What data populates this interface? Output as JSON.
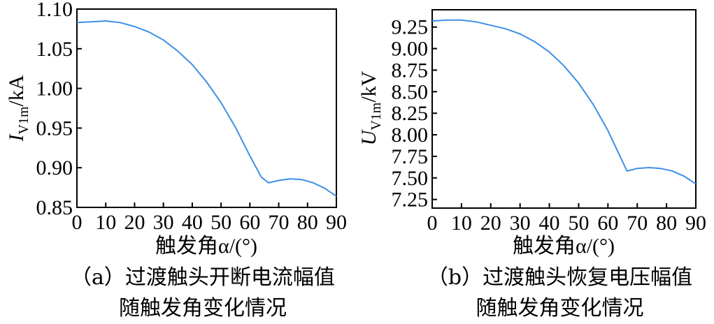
{
  "charts": [
    {
      "id": "a",
      "ylabel_main": "I",
      "ylabel_sub": "V1m",
      "ylabel_unit": "/kA",
      "xlabel": "触发角α/(°)",
      "caption_line1": "（a）过渡触头开断电流幅值",
      "caption_line2": "随触发角变化情况",
      "y_tick_labels": [
        "0.85",
        "0.90",
        "0.95",
        "1.00",
        "1.05",
        "1.10"
      ],
      "x_tick_labels": [
        "0",
        "10",
        "20",
        "30",
        "40",
        "50",
        "60",
        "70",
        "80",
        "90"
      ]
    },
    {
      "id": "b",
      "ylabel_main": "U",
      "ylabel_sub": "V1m",
      "ylabel_unit": "/kV",
      "xlabel": "触发角α/(°)",
      "caption_line1": "（b）过渡触头恢复电压幅值",
      "caption_line2": "随触发角变化情况",
      "y_tick_labels": [
        "7.25",
        "7.50",
        "7.75",
        "8.00",
        "8.25",
        "8.50",
        "8.75",
        "9.00",
        "9.25"
      ],
      "x_tick_labels": [
        "0",
        "10",
        "20",
        "30",
        "40",
        "50",
        "60",
        "70",
        "80",
        "90"
      ]
    }
  ],
  "chart_data": [
    {
      "type": "line",
      "xlabel": "触发角α/(°)",
      "ylabel": "I_V1m/kA",
      "xlim": [
        0,
        90
      ],
      "ylim": [
        0.85,
        1.1
      ],
      "line_color": "#3d8ee6",
      "grid": false,
      "x": [
        0,
        5,
        10,
        15,
        20,
        25,
        30,
        35,
        40,
        45,
        50,
        55,
        60,
        64,
        66.5,
        70,
        74,
        78,
        82,
        86,
        90
      ],
      "y": [
        1.083,
        1.084,
        1.085,
        1.083,
        1.078,
        1.071,
        1.061,
        1.047,
        1.03,
        1.008,
        0.982,
        0.951,
        0.915,
        0.888,
        0.881,
        0.884,
        0.886,
        0.885,
        0.881,
        0.874,
        0.864
      ]
    },
    {
      "type": "line",
      "xlabel": "触发角α/(°)",
      "ylabel": "U_V1m/kV",
      "xlim": [
        0,
        90
      ],
      "ylim": [
        7.15,
        9.45
      ],
      "line_color": "#3d8ee6",
      "grid": false,
      "x": [
        0,
        5,
        10,
        15,
        20,
        25,
        30,
        35,
        40,
        45,
        50,
        55,
        60,
        64,
        66.5,
        70,
        74,
        78,
        82,
        86,
        90
      ],
      "y": [
        9.32,
        9.33,
        9.33,
        9.31,
        9.27,
        9.23,
        9.17,
        9.08,
        8.96,
        8.8,
        8.6,
        8.35,
        8.05,
        7.76,
        7.58,
        7.61,
        7.62,
        7.61,
        7.58,
        7.52,
        7.43
      ]
    }
  ]
}
